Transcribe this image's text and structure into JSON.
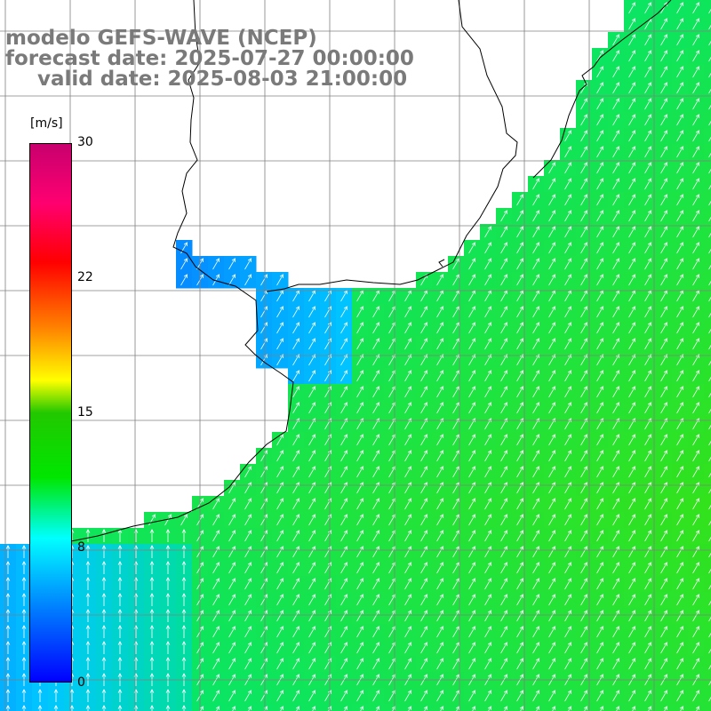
{
  "header": {
    "line1": "modelo GEFS-WAVE (NCEP)",
    "line2": "forecast date: 2025-07-27 00:00:00",
    "line3": "valid date: 2025-08-03 21:00:00"
  },
  "colorbar": {
    "unit": "[m/s]",
    "ticks": [
      "30",
      "22",
      "15",
      "8",
      "0"
    ],
    "tick_values": [
      30,
      22,
      15,
      8,
      0
    ],
    "range": [
      0,
      30
    ],
    "colors": [
      "#0000ff",
      "#0078ff",
      "#00ffff",
      "#00e600",
      "#22c800",
      "#ffff00",
      "#ff8000",
      "#ff0000",
      "#ff0070",
      "#c8006e"
    ]
  },
  "map": {
    "variable": "wind speed",
    "overlay": "wind direction arrows",
    "background_color": "#ffffff",
    "grid_color": "#808080",
    "coast_color": "#000000"
  }
}
